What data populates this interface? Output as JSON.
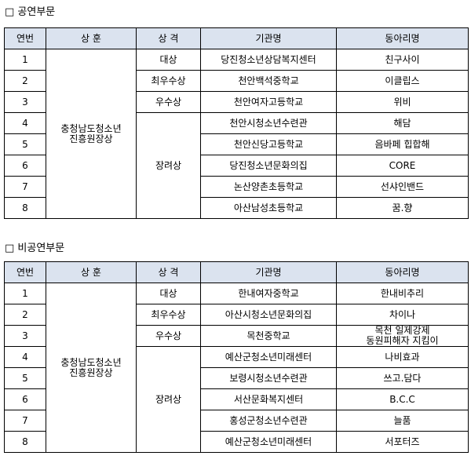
{
  "sections": [
    {
      "title": "□ 공연부문",
      "header": [
        "연번",
        "상 훈",
        "상 격",
        "기관명",
        "동아리명"
      ],
      "award": [
        "충청남도청소년",
        "진흥원장상"
      ],
      "rows": [
        [
          "1",
          "대상",
          "당진청소년상담복지센터",
          [
            "친구사이"
          ]
        ],
        [
          "2",
          "최우수상",
          "천안백석중학교",
          [
            "이클립스"
          ]
        ],
        [
          "3",
          "우수상",
          "천안여자고등학교",
          [
            "위비"
          ]
        ],
        [
          "4",
          "장려상",
          "천안시청소년수련관",
          [
            "해담"
          ]
        ],
        [
          "5",
          null,
          "천안신당고등학교",
          [
            "음바페 힙합해"
          ]
        ],
        [
          "6",
          null,
          "당진청소년문화의집",
          [
            "CORE"
          ]
        ],
        [
          "7",
          null,
          "논산양촌초등학교",
          [
            "선샤인밴드"
          ]
        ],
        [
          "8",
          null,
          "아산남성초등학교",
          [
            "꿈.향"
          ]
        ]
      ]
    },
    {
      "title": "□ 비공연부문",
      "header": [
        "연번",
        "상 훈",
        "상 격",
        "기관명",
        "동아리명"
      ],
      "award": [
        "충청남도청소년",
        "진흥원장상"
      ],
      "rows": [
        [
          "1",
          "대상",
          "한내여자중학교",
          [
            "한내비추리"
          ]
        ],
        [
          "2",
          "최우수상",
          "아산시청소년문화의집",
          [
            "차이나"
          ]
        ],
        [
          "3",
          "우수상",
          "목천중학교",
          [
            "목천 일제강제",
            "동원피해자 지킴이"
          ]
        ],
        [
          "4",
          "장려상",
          "예산군청소년미래센터",
          [
            "나비효과"
          ]
        ],
        [
          "5",
          null,
          "보령시청소년수련관",
          [
            "쓰고.담다"
          ]
        ],
        [
          "6",
          null,
          "서산문화복지센터",
          [
            "B.C.C"
          ]
        ],
        [
          "7",
          null,
          "홍성군청소년수련관",
          [
            "늘품"
          ]
        ],
        [
          "8",
          null,
          "예산군청소년미래센터",
          [
            "서포터즈"
          ]
        ]
      ]
    }
  ]
}
